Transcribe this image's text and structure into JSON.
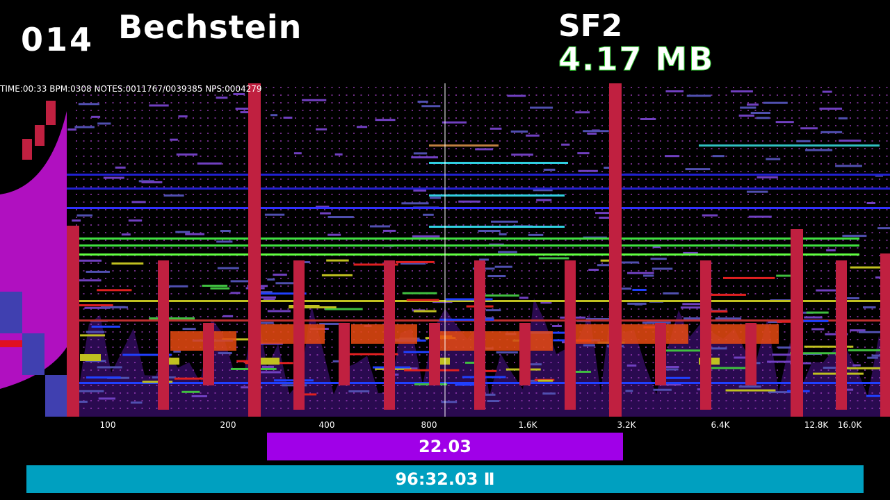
{
  "header": {
    "index": "014",
    "instrument": "Bechstein",
    "format": "SF2",
    "size": "4.17 MB"
  },
  "status": "TIME:00:33 BPM:0308 NOTES:0011767/0039385 NPS:0004279",
  "frequency_labels": [
    "100",
    "200",
    "400",
    "800",
    "1.6K",
    "3.2K",
    "6.4K",
    "12.8K",
    "16.0K"
  ],
  "bars": {
    "level": "22.03",
    "time": "96:32.03 Ⅱ"
  }
}
